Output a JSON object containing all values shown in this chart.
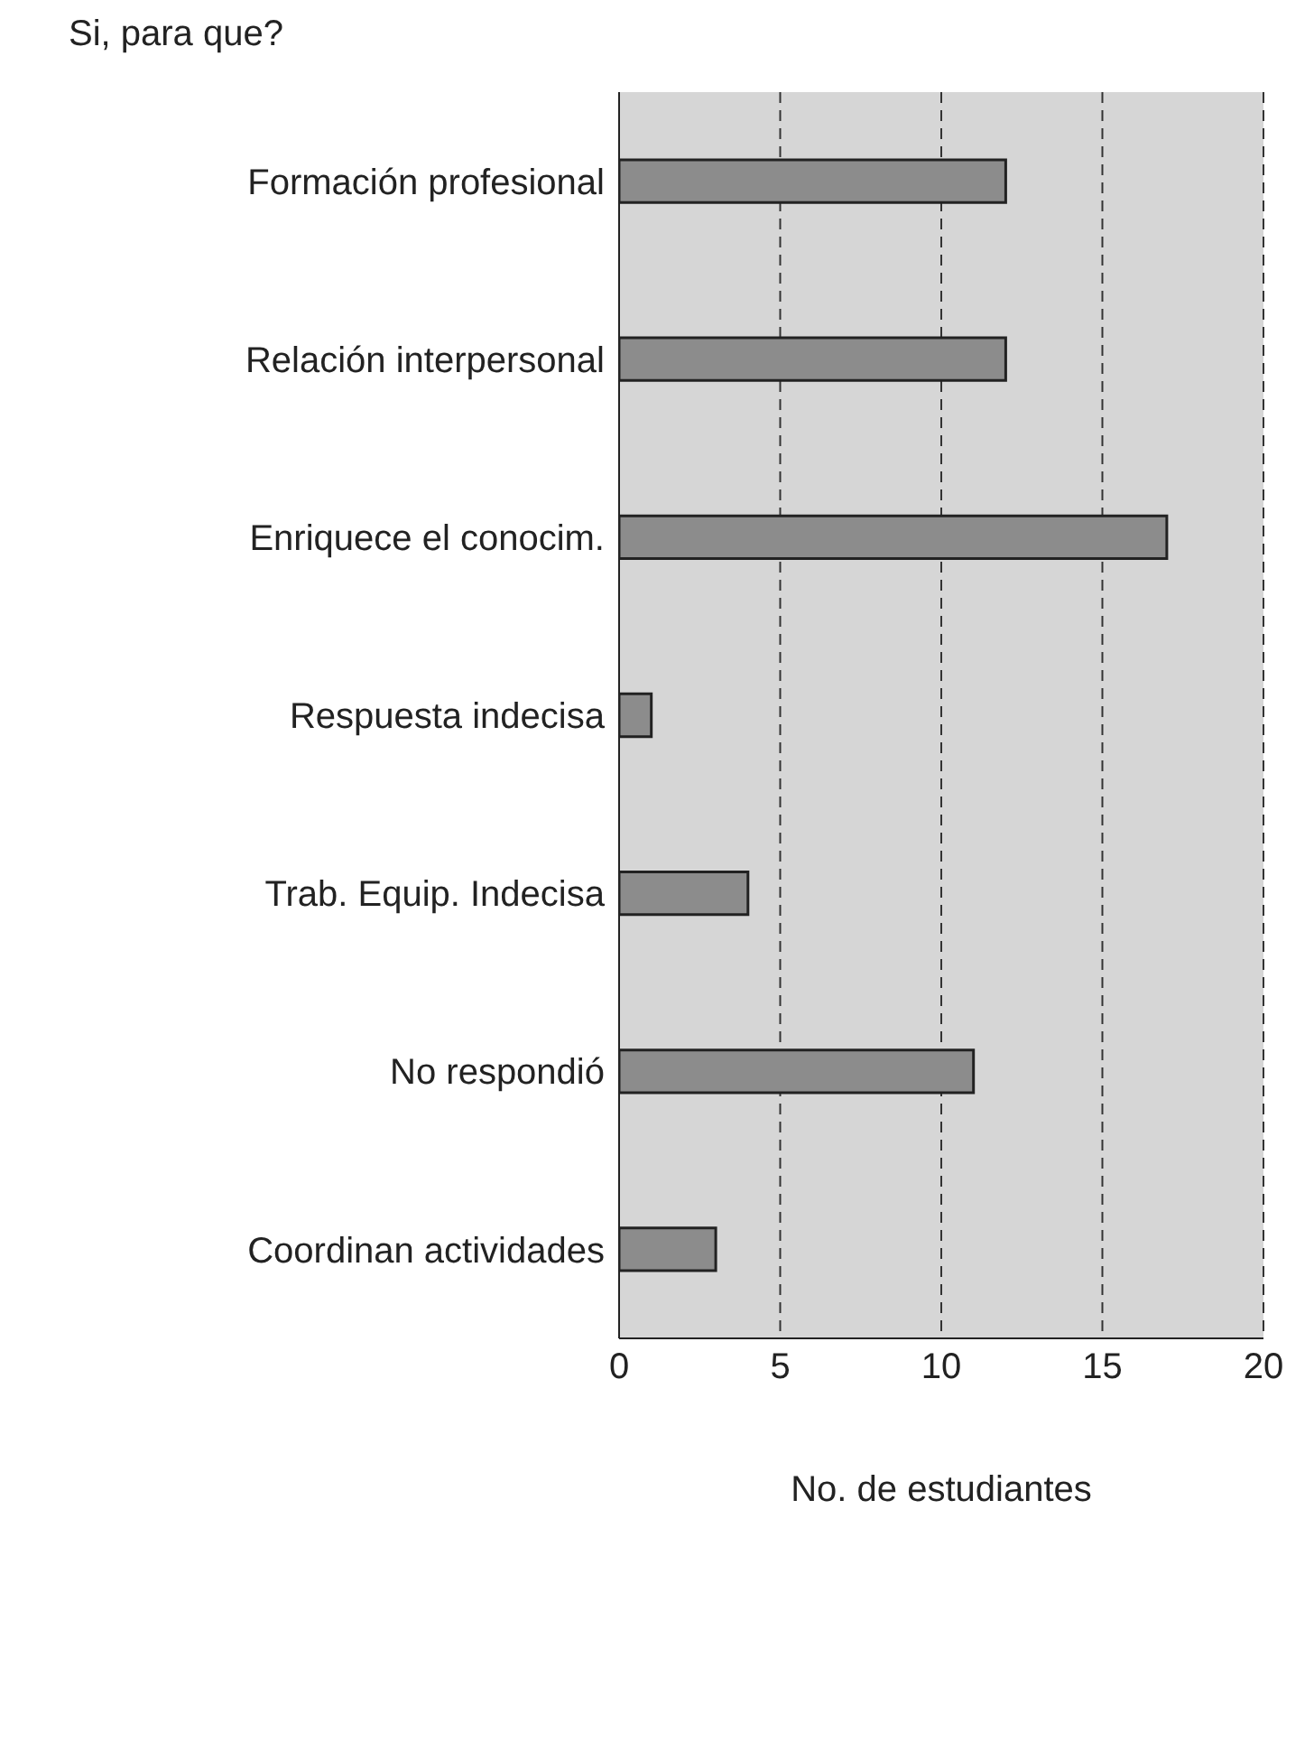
{
  "chart_data": {
    "type": "bar",
    "orientation": "horizontal",
    "title": "Si, para que?",
    "xlabel": "No. de estudiantes",
    "categories": [
      "Formación profesional",
      "Relación interpersonal",
      "Enriquece el conocim.",
      "Respuesta indecisa",
      "Trab. Equip. Indecisa",
      "No respondió",
      "Coordinan actividades"
    ],
    "values": [
      12,
      12,
      17,
      1,
      4,
      11,
      3
    ],
    "color": "#8c8c8c",
    "xlim": [
      0,
      20
    ],
    "xticks": [
      0,
      5,
      10,
      15,
      20
    ],
    "grid": "x"
  }
}
